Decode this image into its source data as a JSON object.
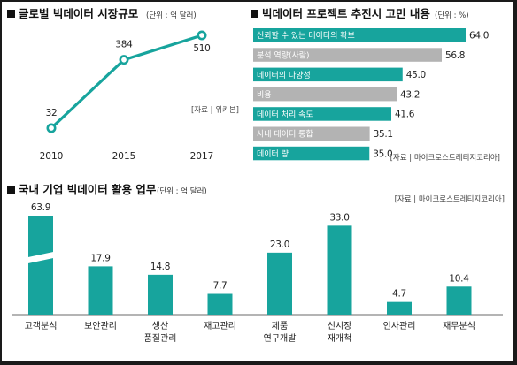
{
  "colors": {
    "teal": "#17a49d",
    "gray": "#b3b3b3",
    "text": "#222222",
    "frame": "#1a1a1a"
  },
  "chart_data": [
    {
      "type": "line",
      "title": "글로벌 빅데이터 시장규모",
      "unit": "(단위 : 억 달러)",
      "x": [
        "2010",
        "2015",
        "2017"
      ],
      "y": [
        32,
        384,
        510
      ],
      "value_labels": [
        "32",
        "384",
        "510"
      ],
      "source": "[자료 | 위키본]",
      "xlabel": "",
      "ylabel": ""
    },
    {
      "type": "bar",
      "orientation": "horizontal",
      "title": "빅데이터 프로젝트 추진시 고민 내용",
      "unit": "(단위 : %)",
      "categories": [
        "신뢰할 수 있는 데이터의 확보",
        "분석 역량(사람)",
        "데이터의 다양성",
        "비용",
        "데이터 처리 속도",
        "사내 데이터 통합",
        "데이터 량"
      ],
      "values": [
        64.0,
        56.8,
        45.0,
        43.2,
        41.6,
        35.1,
        35.0
      ],
      "value_labels": [
        "64.0",
        "56.8",
        "45.0",
        "43.2",
        "41.6",
        "35.1",
        "35.0"
      ],
      "bar_colors": [
        "teal",
        "gray",
        "teal",
        "gray",
        "teal",
        "gray",
        "teal"
      ],
      "source": "[자료 | 마이크로스트레티지코리아]"
    },
    {
      "type": "bar",
      "title": "국내 기업 빅데이터 활용 업무",
      "unit": "(단위 : 억 달러)",
      "categories": [
        "고객분석",
        "보안관리",
        "생산\n품질관리",
        "재고관리",
        "제품\n연구개발",
        "신시장\n재개척",
        "인사관리",
        "재무분석"
      ],
      "values": [
        63.9,
        17.9,
        14.8,
        7.7,
        23.0,
        33.0,
        4.7,
        10.4
      ],
      "value_labels": [
        "63.9",
        "17.9",
        "14.8",
        "7.7",
        "23.0",
        "33.0",
        "4.7",
        "10.4"
      ],
      "axis_break": true,
      "source": "[자료 | 마이크로스트레티지코리아]"
    }
  ]
}
